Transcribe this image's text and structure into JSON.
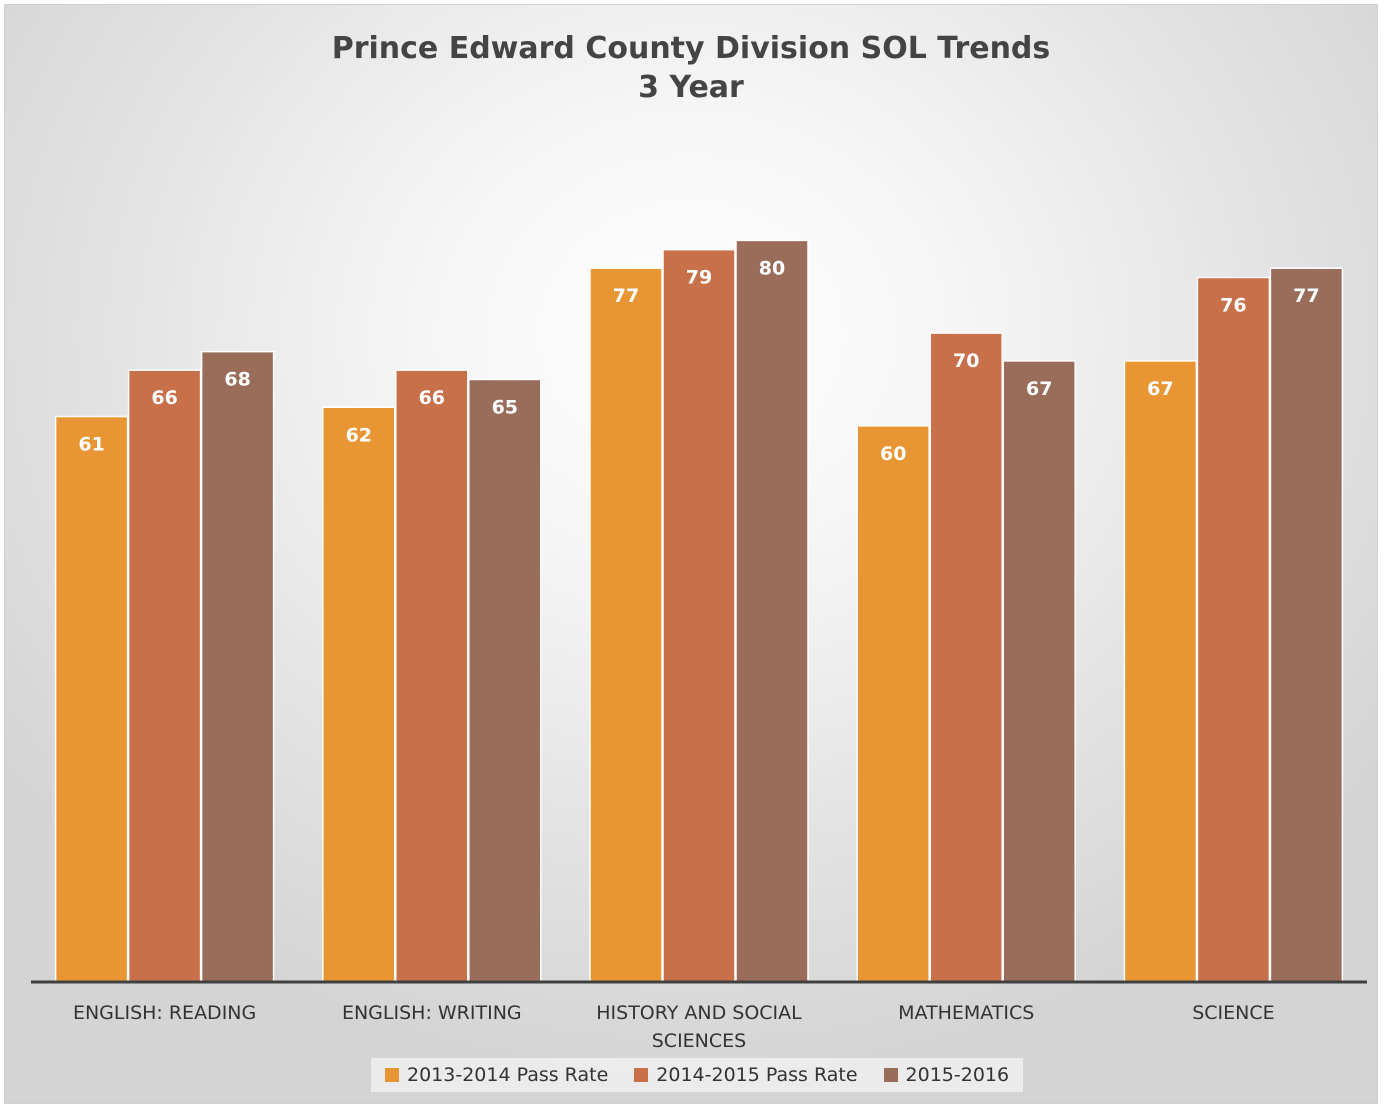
{
  "chart_data": {
    "type": "bar",
    "title": "Prince Edward County Division SOL Trends",
    "subtitle": "3 Year",
    "categories": [
      [
        "ENGLISH: READING"
      ],
      [
        "ENGLISH: WRITING"
      ],
      [
        "HISTORY AND SOCIAL",
        "SCIENCES"
      ],
      [
        "MATHEMATICS"
      ],
      [
        "SCIENCE"
      ]
    ],
    "series": [
      {
        "name": "2013-2014 Pass Rate",
        "color": "#e79633",
        "values": [
          61,
          62,
          77,
          60,
          67
        ]
      },
      {
        "name": "2014-2015 Pass Rate",
        "color": "#c8704a",
        "values": [
          66,
          66,
          79,
          70,
          76
        ]
      },
      {
        "name": "2015-2016",
        "color": "#9a6d5a",
        "values": [
          68,
          65,
          80,
          67,
          77
        ]
      }
    ],
    "ylim": [
      0,
      100
    ],
    "grid": false,
    "data_labels": true,
    "legend_position": "bottom"
  }
}
